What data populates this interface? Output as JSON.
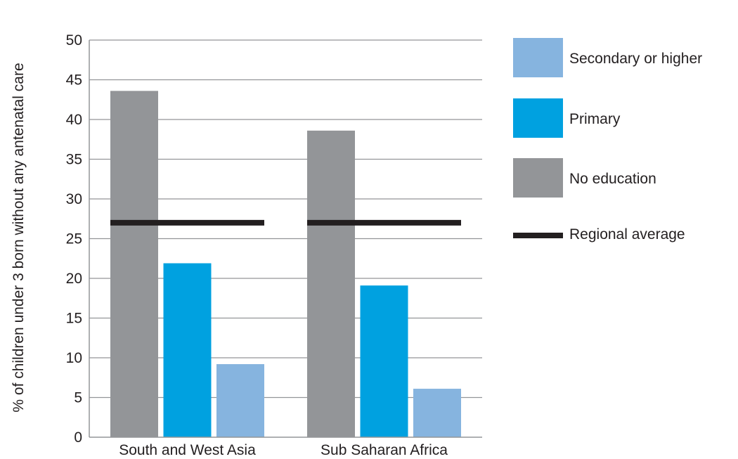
{
  "chart_data": {
    "type": "bar",
    "title": "",
    "xlabel": "",
    "ylabel": "% of children under 3 born without any antenatal care",
    "ylim": [
      0,
      50
    ],
    "yticks": [
      0,
      5,
      10,
      15,
      20,
      25,
      30,
      35,
      40,
      45,
      50
    ],
    "grid": true,
    "legend_position": "right",
    "categories": [
      "South and West Asia",
      "Sub Saharan Africa"
    ],
    "series": [
      {
        "name": "No education",
        "color": "#939598",
        "values": [
          43.6,
          38.6
        ]
      },
      {
        "name": "Primary",
        "color": "#00a1e0",
        "values": [
          21.9,
          19.1
        ]
      },
      {
        "name": "Secondary or higher",
        "color": "#86b4df",
        "values": [
          9.2,
          6.1
        ]
      }
    ],
    "regional_average": {
      "name": "Regional average",
      "color": "#231f20",
      "values": [
        27.0,
        27.0
      ]
    },
    "legend": [
      {
        "label": "Secondary or higher",
        "color": "#86b4df",
        "kind": "swatch"
      },
      {
        "label": "Primary",
        "color": "#00a1e0",
        "kind": "swatch"
      },
      {
        "label": "No education",
        "color": "#939598",
        "kind": "swatch"
      },
      {
        "label": "Regional average",
        "color": "#231f20",
        "kind": "line"
      }
    ]
  }
}
